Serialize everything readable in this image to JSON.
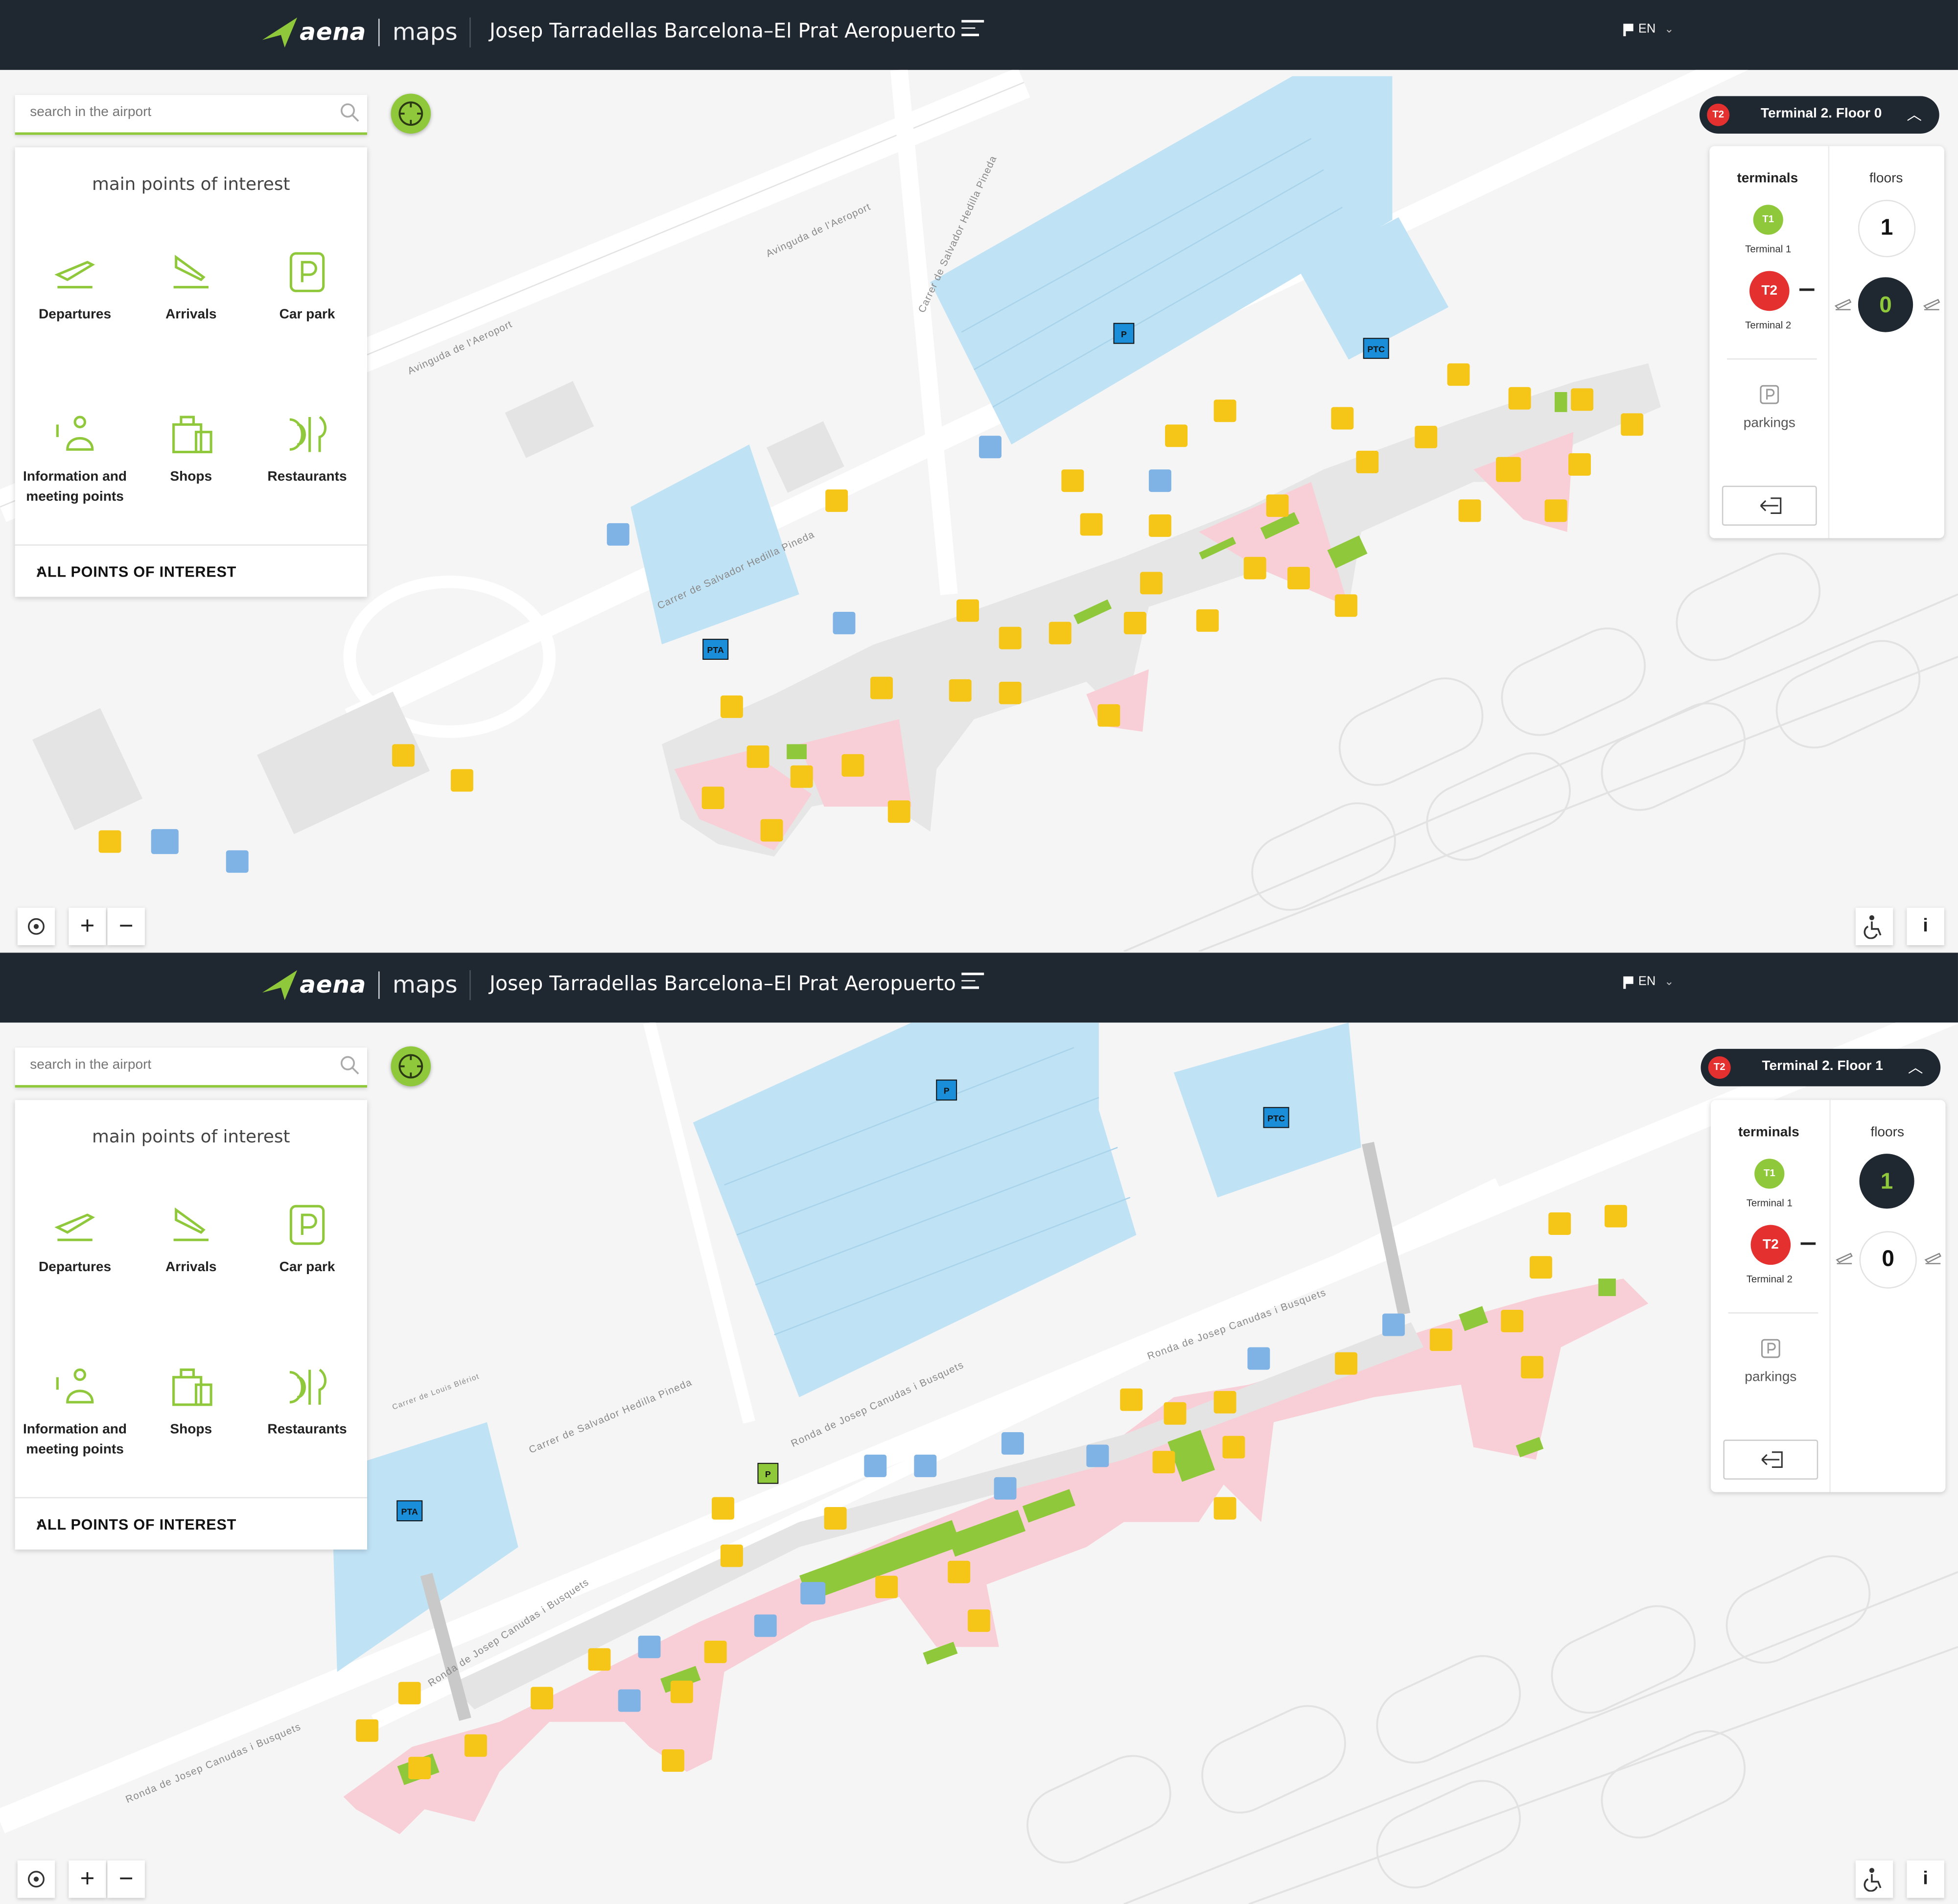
{
  "app": {
    "brand": "aena",
    "product": "maps",
    "airport_title": "Josep Tarradellas Barcelona–El Prat Aeropuerto",
    "language": "EN"
  },
  "search": {
    "placeholder": "search in the airport"
  },
  "poi_panel": {
    "heading": "main points of interest",
    "items": [
      {
        "label": "Departures",
        "icon": "departures-icon"
      },
      {
        "label": "Arrivals",
        "icon": "arrivals-icon"
      },
      {
        "label": "Car park",
        "icon": "car-park-icon"
      },
      {
        "label": "Information and meeting points",
        "icon": "information-icon"
      },
      {
        "label": "Shops",
        "icon": "shops-icon"
      },
      {
        "label": "Restaurants",
        "icon": "restaurants-icon"
      }
    ],
    "all_link": "ALL POINTS OF INTEREST"
  },
  "terminal_panel": {
    "terminals_heading": "terminals",
    "floors_heading": "floors",
    "terminals": [
      {
        "badge": "T1",
        "label": "Terminal 1",
        "color": "#8fc83a"
      },
      {
        "badge": "T2",
        "label": "Terminal 2",
        "color": "#e53030"
      }
    ],
    "parkings_label": "parkings"
  },
  "screens": [
    {
      "pill_badge": "T2",
      "pill_text": "Terminal 2. Floor 0",
      "floors": [
        "1",
        "0"
      ],
      "active_floor": "0",
      "street_labels": [
        "Avinguda de l'Aeroport",
        "Avinguda de l'Aeroport",
        "Carrer de Salvador Hedilla Pineda",
        "Carrer de Salvador Hedilla Pineda"
      ],
      "zone_labels": [
        "P",
        "PTC",
        "PTA"
      ]
    },
    {
      "pill_badge": "T2",
      "pill_text": "Terminal 2. Floor 1",
      "floors": [
        "1",
        "0"
      ],
      "active_floor": "1",
      "street_labels": [
        "Carrer de Salvador Hedilla Pineda",
        "Ronda de Josep Canudas i Busquets",
        "Ronda de Josep Canudas i Busquets",
        "Ronda de Josep Canudas i Busquets",
        "Carrer de Louis Blériot",
        "Ronda de Josep Canudas i Busquets"
      ],
      "zone_labels": [
        "P",
        "PTC",
        "PTA",
        "P"
      ]
    }
  ],
  "colors": {
    "topbar": "#1f2731",
    "accent_green": "#8fc83a",
    "terminal_red": "#e53030",
    "poi_yellow": "#f5c518",
    "poi_blue": "#7fb2e5",
    "parking_blue": "#bfe2f5",
    "terminal_pink": "#f8cfd6"
  }
}
